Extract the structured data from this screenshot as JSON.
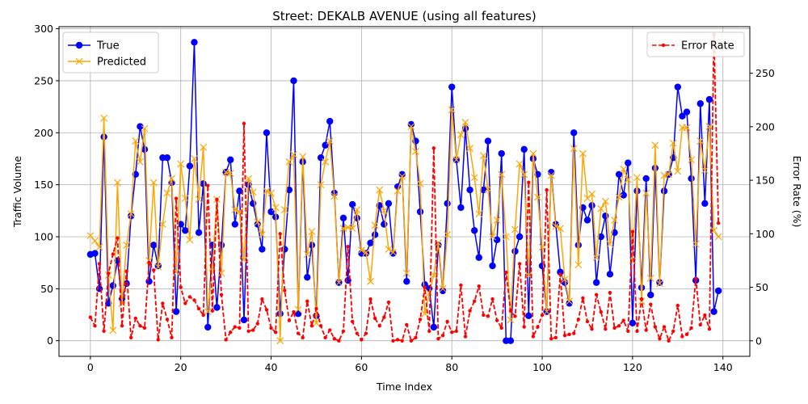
{
  "chart_data": {
    "type": "line",
    "title": "Street: DEKALB AVENUE (using all features)",
    "xlabel": "Time Index",
    "ylabel": "Traffic Volume",
    "y2label": "Error Rate (%)",
    "xlim": [
      -6.95,
      145.95
    ],
    "ylim": [
      -15,
      302
    ],
    "y2lim": [
      -14.5,
      293.5
    ],
    "xticks": [
      0,
      20,
      40,
      60,
      80,
      100,
      120,
      140
    ],
    "yticks": [
      0,
      50,
      100,
      150,
      200,
      250,
      300
    ],
    "y2ticks": [
      0,
      50,
      100,
      150,
      200,
      250
    ],
    "grid": true,
    "legend_left": "upper-left",
    "legend_right": "upper-right",
    "x": [
      0,
      1,
      2,
      3,
      4,
      5,
      6,
      7,
      8,
      9,
      10,
      11,
      12,
      13,
      14,
      15,
      16,
      17,
      18,
      19,
      20,
      21,
      22,
      23,
      24,
      25,
      26,
      27,
      28,
      29,
      30,
      31,
      32,
      33,
      34,
      35,
      36,
      37,
      38,
      39,
      40,
      41,
      42,
      43,
      44,
      45,
      46,
      47,
      48,
      49,
      50,
      51,
      52,
      53,
      54,
      55,
      56,
      57,
      58,
      59,
      60,
      61,
      62,
      63,
      64,
      65,
      66,
      67,
      68,
      69,
      70,
      71,
      72,
      73,
      74,
      75,
      76,
      77,
      78,
      79,
      80,
      81,
      82,
      83,
      84,
      85,
      86,
      87,
      88,
      89,
      90,
      91,
      92,
      93,
      94,
      95,
      96,
      97,
      98,
      99,
      100,
      101,
      102,
      103,
      104,
      105,
      106,
      107,
      108,
      109,
      110,
      111,
      112,
      113,
      114,
      115,
      116,
      117,
      118,
      119,
      120,
      121,
      122,
      123,
      124,
      125,
      126,
      127,
      128,
      129,
      130,
      131,
      132,
      133,
      134,
      135,
      136,
      137,
      138,
      139
    ],
    "series": [
      {
        "name": "True",
        "axis": "left",
        "color": "#0000ff",
        "marker": "circle",
        "linestyle": "solid",
        "values": [
          83,
          84,
          50,
          196,
          36,
          53,
          77,
          40,
          55,
          120,
          160,
          206,
          184,
          57,
          92,
          72,
          176,
          176,
          152,
          28,
          112,
          106,
          168,
          287,
          104,
          151,
          13,
          92,
          32,
          92,
          162,
          174,
          112,
          144,
          20,
          150,
          132,
          112,
          88,
          200,
          124,
          119,
          26,
          88,
          145,
          250,
          26,
          172,
          61,
          92,
          24,
          176,
          188,
          211,
          142,
          56,
          118,
          58,
          131,
          118,
          84,
          84,
          94,
          102,
          130,
          112,
          132,
          84,
          148,
          160,
          57,
          208,
          192,
          124,
          54,
          50,
          13,
          92,
          48,
          132,
          244,
          174,
          128,
          204,
          145,
          106,
          80,
          145,
          192,
          72,
          97,
          180,
          0,
          0,
          86,
          100,
          184,
          24,
          175,
          160,
          72,
          28,
          162,
          112,
          66,
          56,
          36,
          200,
          92,
          128,
          116,
          130,
          56,
          100,
          120,
          64,
          104,
          160,
          140,
          171,
          17,
          144,
          51,
          156,
          44,
          166,
          56,
          144,
          160,
          176,
          244,
          216,
          220,
          156,
          58,
          228,
          132,
          232,
          28,
          48
        ]
      },
      {
        "name": "Predicted",
        "axis": "left",
        "color": "#ffa500",
        "marker": "x",
        "linestyle": "solid",
        "values": [
          101,
          96,
          90,
          214,
          63,
          10,
          152,
          36,
          92,
          122,
          192,
          172,
          204,
          77,
          152,
          71,
          112,
          142,
          156,
          66,
          170,
          137,
          97,
          175,
          136,
          186,
          28,
          70,
          136,
          65,
          162,
          161,
          126,
          124,
          78,
          156,
          143,
          114,
          102,
          144,
          142,
          128,
          0,
          126,
          172,
          179,
          30,
          177,
          83,
          105,
          17,
          150,
          172,
          192,
          139,
          56,
          108,
          109,
          108,
          126,
          87,
          85,
          57,
          111,
          145,
          125,
          88,
          85,
          144,
          158,
          65,
          206,
          182,
          151,
          26,
          46,
          63,
          94,
          50,
          102,
          222,
          174,
          198,
          210,
          185,
          157,
          122,
          178,
          146,
          100,
          116,
          160,
          100,
          20,
          107,
          170,
          160,
          63,
          180,
          138,
          90,
          28,
          159,
          110,
          108,
          59,
          38,
          185,
          73,
          180,
          137,
          141,
          80,
          127,
          134,
          93,
          116,
          138,
          165,
          155,
          77,
          157,
          38,
          142,
          60,
          188,
          55,
          159,
          160,
          190,
          163,
          205,
          205,
          174,
          93,
          192,
          164,
          206,
          106,
          100
        ]
      },
      {
        "name": "Error Rate",
        "axis": "right",
        "color": "#ff0000",
        "marker": "dot",
        "linestyle": "dashed",
        "values": [
          22,
          14,
          72,
          9,
          63,
          81,
          96,
          14,
          65,
          3,
          21,
          14,
          12,
          73,
          66,
          1,
          35,
          20,
          3,
          133,
          50,
          35,
          41,
          38,
          30,
          24,
          145,
          28,
          132,
          43,
          1,
          8,
          13,
          12,
          203,
          9,
          10,
          16,
          39,
          29,
          12,
          8,
          100,
          47,
          19,
          27,
          7,
          3,
          37,
          14,
          30,
          14,
          3,
          10,
          2,
          0,
          9,
          88,
          18,
          7,
          1,
          7,
          39,
          21,
          14,
          22,
          36,
          0,
          1,
          0,
          15,
          0,
          3,
          20,
          50,
          9,
          180,
          2,
          5,
          18,
          8,
          9,
          52,
          4,
          28,
          37,
          51,
          24,
          23,
          39,
          19,
          12,
          64,
          28,
          23,
          72,
          13,
          148,
          4,
          13,
          24,
          141,
          2,
          3,
          62,
          5,
          6,
          7,
          20,
          40,
          18,
          11,
          43,
          27,
          11,
          45,
          12,
          14,
          19,
          9,
          102,
          9,
          39,
          10,
          34,
          13,
          2,
          13,
          0,
          9,
          33,
          4,
          6,
          12,
          58,
          15,
          24,
          11,
          286,
          110
        ]
      }
    ]
  }
}
